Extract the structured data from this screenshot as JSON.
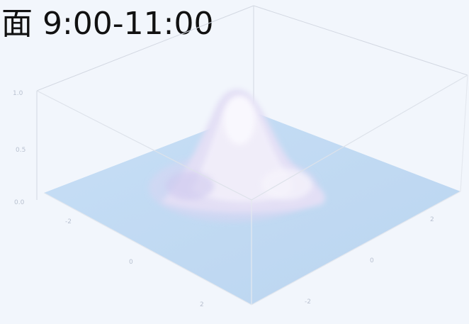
{
  "caption": {
    "text": "面 9:00-11:00"
  },
  "chart_data": {
    "type": "surface",
    "title": "",
    "xlabel": "",
    "ylabel": "",
    "zlabel": "",
    "z_ticks": [
      "0.0",
      "0.5",
      "1.0"
    ],
    "x_ticks": [
      "-2",
      "0",
      "2"
    ],
    "y_ticks": [
      "2",
      "0",
      "-2"
    ],
    "zlim": [
      0,
      1
    ],
    "xlim": [
      -3,
      3
    ],
    "ylim": [
      -3,
      3
    ],
    "surface": {
      "function": "gaussian",
      "peak_value": 1.0,
      "peak_location": [
        0,
        0
      ]
    },
    "colors": {
      "base": "#bcd8f3",
      "peak": "#f4f0fa",
      "mid": "#d8d4f2",
      "box_edge": "#d6dbe4"
    }
  }
}
